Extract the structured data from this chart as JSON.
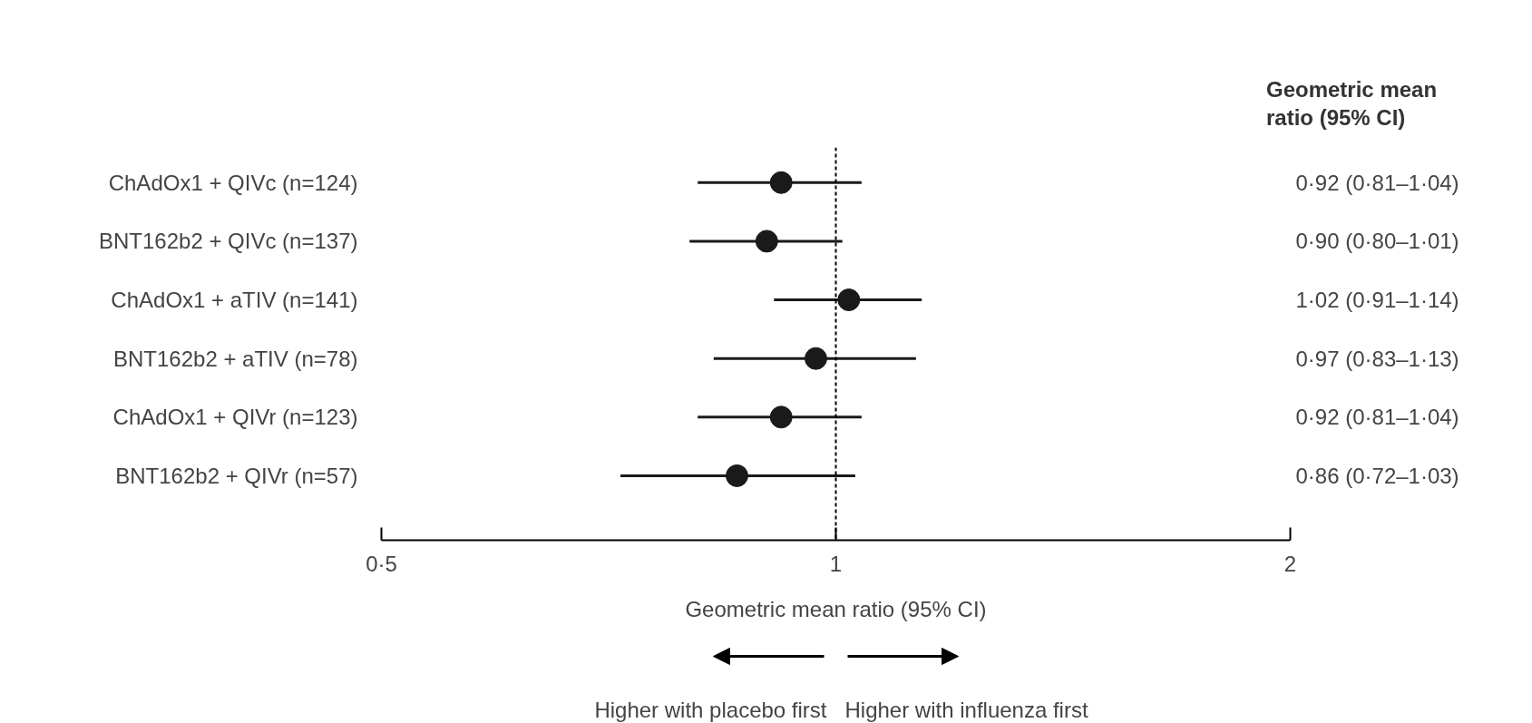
{
  "chart_data": {
    "type": "scatter",
    "orientation": "horizontal",
    "categories": [
      "ChAdOx1 + QIVc (n=124)",
      "BNT162b2 + QIVc (n=137)",
      "ChAdOx1 + aTIV (n=141)",
      "BNT162b2 + aTIV (n=78)",
      "ChAdOx1 + QIVr (n=123)",
      "BNT162b2 + QIVr (n=57)"
    ],
    "values": [
      0.92,
      0.9,
      1.02,
      0.97,
      0.92,
      0.86
    ],
    "errors": [
      [
        0.81,
        1.04
      ],
      [
        0.8,
        1.01
      ],
      [
        0.91,
        1.14
      ],
      [
        0.83,
        1.13
      ],
      [
        0.81,
        1.04
      ],
      [
        0.72,
        1.03
      ]
    ],
    "value_labels": [
      "0·92 (0·81–1·04)",
      "0·90 (0·80–1·01)",
      "1·02 (0·91–1·14)",
      "0·97 (0·83–1·13)",
      "0·92 (0·81–1·04)",
      "0·86 (0·72–1·03)"
    ],
    "color": "#1a1a1a",
    "marker": "circle",
    "log": "x",
    "grid": false,
    "xlim": [
      0.5,
      2
    ],
    "xticks": [
      {
        "value": 0.5,
        "label": "0·5"
      },
      1,
      2
    ],
    "xlabel": "Geometric mean ratio (95% CI)",
    "ref_lines": [
      {
        "axis": "x",
        "value": 1,
        "line_style": "dashed"
      }
    ],
    "annotations": [
      "Geometric mean\nratio (95% CI)",
      "Higher with placebo first",
      "Higher with influenza first"
    ]
  }
}
